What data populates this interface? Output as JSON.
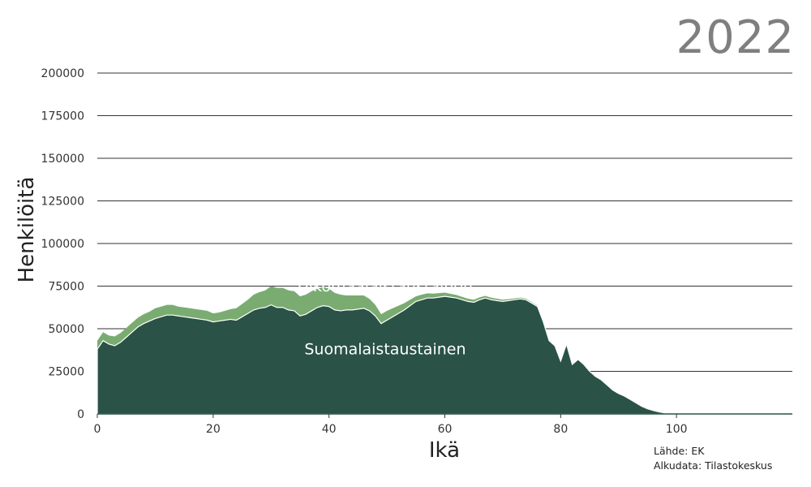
{
  "year": "2022",
  "source": {
    "line1": "Lähde: EK",
    "line2": "Alkudata: Tilastokeskus"
  },
  "chart_data": {
    "type": "area",
    "stacked": true,
    "title": "",
    "xlabel": "Ikä",
    "ylabel": "Henkilöitä",
    "xlim": [
      0,
      120
    ],
    "ylim": [
      0,
      200000
    ],
    "x_ticks": [
      0,
      20,
      40,
      60,
      80,
      100
    ],
    "y_ticks": [
      0,
      25000,
      50000,
      75000,
      100000,
      125000,
      150000,
      175000,
      200000
    ],
    "grid": "horizontal",
    "colors": {
      "Suomalaistaustainen": "#2a5246",
      "Ulkomaalaistaustainen": "#7aac72",
      "gridline": "#333333",
      "year": "#7f7f7f"
    },
    "series_labels": [
      {
        "name": "Suomalaistaustainen",
        "x": 56,
        "y": 35000,
        "color": "#ffffff"
      },
      {
        "name": "Ulkomaalaistaustainen",
        "x": 56,
        "y": 72000,
        "color": "#ffffff"
      }
    ],
    "x": [
      0,
      1,
      2,
      3,
      4,
      5,
      6,
      7,
      8,
      9,
      10,
      11,
      12,
      13,
      14,
      15,
      16,
      17,
      18,
      19,
      20,
      21,
      22,
      23,
      24,
      25,
      26,
      27,
      28,
      29,
      30,
      31,
      32,
      33,
      34,
      35,
      36,
      37,
      38,
      39,
      40,
      41,
      42,
      43,
      44,
      45,
      46,
      47,
      48,
      49,
      50,
      51,
      52,
      53,
      54,
      55,
      56,
      57,
      58,
      59,
      60,
      61,
      62,
      63,
      64,
      65,
      66,
      67,
      68,
      69,
      70,
      71,
      72,
      73,
      74,
      75,
      76,
      77,
      78,
      79,
      80,
      81,
      82,
      83,
      84,
      85,
      86,
      87,
      88,
      89,
      90,
      91,
      92,
      93,
      94,
      95,
      96,
      97,
      98,
      99,
      100,
      101,
      102,
      103,
      104,
      105,
      106,
      107,
      108,
      109,
      110,
      111,
      112,
      113,
      114,
      115,
      116,
      117,
      118,
      119,
      120
    ],
    "series": [
      {
        "name": "Suomalaistaustainen",
        "values": [
          38000,
          43000,
          41000,
          40000,
          42000,
          45000,
          48000,
          51000,
          53000,
          54500,
          56000,
          57000,
          58000,
          58000,
          57500,
          57000,
          56500,
          56000,
          55500,
          55000,
          54000,
          54500,
          55000,
          55500,
          55000,
          57000,
          59000,
          61000,
          62000,
          62500,
          64000,
          62500,
          62500,
          61000,
          60500,
          57500,
          58500,
          60500,
          62500,
          63500,
          63000,
          61000,
          60500,
          61000,
          61000,
          61500,
          62000,
          60500,
          57500,
          53000,
          55000,
          57000,
          59000,
          61000,
          63500,
          66000,
          67000,
          68000,
          68000,
          68500,
          69000,
          68500,
          68000,
          67000,
          66000,
          65500,
          67000,
          68000,
          67000,
          66500,
          66000,
          66500,
          67000,
          67500,
          67000,
          65000,
          63000,
          54000,
          43000,
          40000,
          31000,
          41000,
          29000,
          32000,
          29000,
          25000,
          22000,
          20000,
          17000,
          14000,
          12000,
          10500,
          8500,
          6500,
          4500,
          3000,
          2000,
          1200,
          600,
          300,
          150,
          80,
          50,
          30,
          20,
          10,
          5,
          5,
          0,
          0,
          0,
          0,
          0,
          0,
          0,
          0,
          0,
          0,
          0,
          0,
          0
        ]
      },
      {
        "name": "Ulkomaalaistaustainen",
        "values": [
          5000,
          5000,
          5000,
          5500,
          5500,
          5500,
          5500,
          5500,
          5500,
          5500,
          6000,
          6000,
          6000,
          6000,
          5500,
          5500,
          5500,
          5500,
          5500,
          5500,
          5000,
          5000,
          5500,
          6000,
          7000,
          7500,
          8000,
          9000,
          9500,
          10000,
          11000,
          11500,
          11500,
          11500,
          11500,
          11500,
          11500,
          11500,
          11000,
          11000,
          10500,
          10000,
          9500,
          8500,
          8500,
          8000,
          7500,
          7000,
          6500,
          5500,
          5500,
          5000,
          4500,
          4000,
          3500,
          3000,
          3000,
          2800,
          2600,
          2400,
          2200,
          2000,
          1800,
          1700,
          1600,
          1500,
          1400,
          1300,
          1200,
          1100,
          1000,
          900,
          800,
          700,
          700,
          600,
          500,
          400,
          300,
          250,
          200,
          150,
          120,
          100,
          80,
          60,
          50,
          40,
          30,
          20,
          10,
          10,
          5,
          5,
          0,
          0,
          0,
          0,
          0,
          0,
          0,
          0,
          0,
          0,
          0,
          0,
          0,
          0,
          0,
          0,
          0,
          0,
          0,
          0,
          0,
          0,
          0,
          0,
          0,
          0,
          0
        ]
      }
    ]
  }
}
